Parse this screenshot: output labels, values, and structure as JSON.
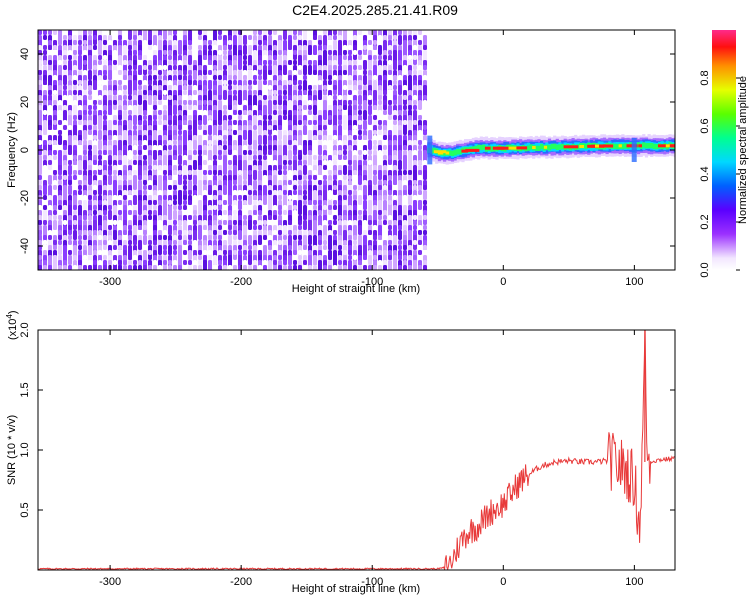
{
  "title": "C2E4.2025.285.21.41.R09",
  "chart_data": [
    {
      "type": "heatmap",
      "xlabel": "Height of straight line (km)",
      "ylabel": "Frequency (Hz)",
      "xlim": [
        -355,
        131
      ],
      "ylim": [
        -50,
        50
      ],
      "xticks": [
        -300,
        -200,
        -100,
        0,
        100
      ],
      "yticks": [
        -40,
        -20,
        0,
        20,
        40
      ],
      "noise_region_x": [
        -355,
        -58
      ],
      "signal_start_x": -58,
      "signal_band_hz": [
        -3,
        5
      ],
      "signal_track": [
        {
          "x": -58,
          "y": 0
        },
        {
          "x": -50,
          "y": -1.5
        },
        {
          "x": -40,
          "y": -1.5
        },
        {
          "x": -20,
          "y": 0.5
        },
        {
          "x": 0,
          "y": 0.5
        },
        {
          "x": 40,
          "y": 1
        },
        {
          "x": 80,
          "y": 1.5
        },
        {
          "x": 100,
          "y": 1.5
        },
        {
          "x": 131,
          "y": 1.5
        }
      ],
      "colorbar": {
        "label": "Normalized spectral amplitude",
        "ticks": [
          "0.0",
          "0.2",
          "0.4",
          "0.6",
          "0.8"
        ],
        "range": [
          0,
          1
        ]
      }
    },
    {
      "type": "line",
      "xlabel": "Height of straight line (km)",
      "ylabel": "SNR (10 * v/v)",
      "exponent_label": "(x10",
      "exponent_sup": "4",
      "xlim": [
        -355,
        131
      ],
      "ylim": [
        0,
        2.0
      ],
      "xticks": [
        -300,
        -200,
        -100,
        0,
        100
      ],
      "yticks": [
        "0.5",
        "1.0",
        "1.5",
        "2.0"
      ],
      "series": [
        {
          "color": "#e83a3a",
          "x": [
            -355,
            -300,
            -200,
            -100,
            -50,
            -45,
            -40,
            -35,
            -30,
            -25,
            -20,
            -15,
            -10,
            -5,
            0,
            5,
            10,
            15,
            20,
            25,
            30,
            40,
            50,
            60,
            70,
            80,
            85,
            90,
            95,
            100,
            102,
            104,
            106,
            108,
            110,
            120,
            131
          ],
          "y": [
            0.01,
            0.01,
            0.01,
            0.01,
            0.01,
            0.02,
            0.06,
            0.18,
            0.28,
            0.33,
            0.36,
            0.42,
            0.48,
            0.52,
            0.55,
            0.62,
            0.7,
            0.76,
            0.8,
            0.84,
            0.87,
            0.9,
            0.91,
            0.9,
            0.9,
            0.91,
            0.9,
            0.86,
            0.82,
            0.74,
            0.55,
            0.35,
            0.95,
            1.95,
            0.9,
            0.92,
            0.93
          ]
        }
      ]
    }
  ]
}
